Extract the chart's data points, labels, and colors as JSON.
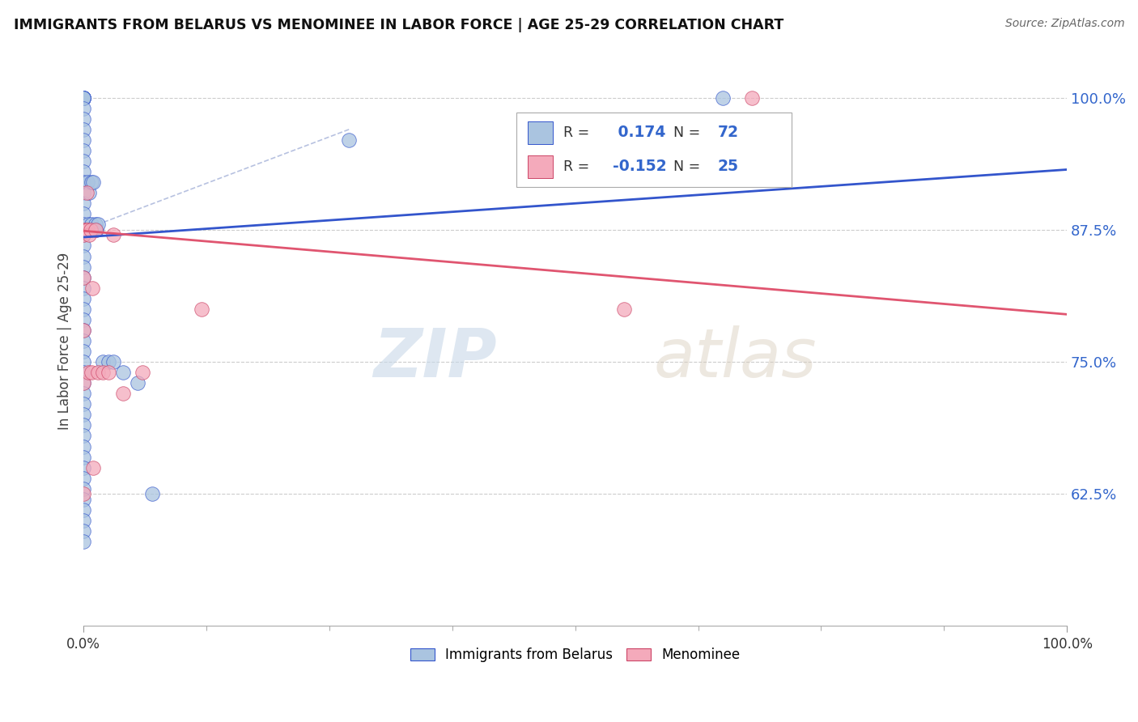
{
  "title": "IMMIGRANTS FROM BELARUS VS MENOMINEE IN LABOR FORCE | AGE 25-29 CORRELATION CHART",
  "source": "Source: ZipAtlas.com",
  "ylabel": "In Labor Force | Age 25-29",
  "xlim": [
    0.0,
    1.0
  ],
  "ylim": [
    0.5,
    1.04
  ],
  "yticks": [
    0.625,
    0.75,
    0.875,
    1.0
  ],
  "ytick_labels": [
    "62.5%",
    "75.0%",
    "87.5%",
    "100.0%"
  ],
  "xtick_labels": [
    "0.0%",
    "100.0%"
  ],
  "xticks": [
    0.0,
    1.0
  ],
  "r_blue": 0.174,
  "n_blue": 72,
  "r_pink": -0.152,
  "n_pink": 25,
  "blue_color": "#aac4e0",
  "pink_color": "#f4aabb",
  "trend_blue_color": "#3355cc",
  "trend_pink_color": "#e05570",
  "blue_scatter_x": [
    0.0,
    0.0,
    0.0,
    0.0,
    0.0,
    0.0,
    0.0,
    0.0,
    0.0,
    0.0,
    0.0,
    0.0,
    0.0,
    0.0,
    0.0,
    0.0,
    0.0,
    0.0,
    0.0,
    0.0,
    0.0,
    0.0,
    0.0,
    0.0,
    0.0,
    0.0,
    0.0,
    0.0,
    0.0,
    0.0,
    0.0,
    0.0,
    0.0,
    0.0,
    0.0,
    0.0,
    0.0,
    0.0,
    0.0,
    0.0,
    0.0,
    0.0,
    0.0,
    0.0,
    0.0,
    0.0,
    0.0,
    0.0,
    0.0,
    0.0,
    0.0,
    0.0,
    0.004,
    0.005,
    0.005,
    0.006,
    0.007,
    0.008,
    0.008,
    0.009,
    0.01,
    0.012,
    0.013,
    0.015,
    0.02,
    0.025,
    0.03,
    0.04,
    0.055,
    0.07,
    0.27,
    0.65
  ],
  "blue_scatter_y": [
    1.0,
    1.0,
    1.0,
    1.0,
    1.0,
    1.0,
    1.0,
    1.0,
    1.0,
    0.99,
    0.98,
    0.97,
    0.96,
    0.95,
    0.94,
    0.93,
    0.92,
    0.91,
    0.9,
    0.89,
    0.88,
    0.875,
    0.87,
    0.86,
    0.85,
    0.84,
    0.83,
    0.82,
    0.81,
    0.8,
    0.79,
    0.78,
    0.77,
    0.76,
    0.75,
    0.74,
    0.73,
    0.72,
    0.71,
    0.7,
    0.69,
    0.68,
    0.67,
    0.66,
    0.65,
    0.64,
    0.63,
    0.62,
    0.61,
    0.6,
    0.59,
    0.58,
    0.92,
    0.875,
    0.88,
    0.91,
    0.875,
    0.92,
    0.88,
    0.875,
    0.92,
    0.88,
    0.875,
    0.88,
    0.75,
    0.75,
    0.75,
    0.74,
    0.73,
    0.625,
    0.96,
    1.0
  ],
  "pink_scatter_x": [
    0.0,
    0.0,
    0.0,
    0.0,
    0.0,
    0.0,
    0.002,
    0.003,
    0.004,
    0.005,
    0.006,
    0.007,
    0.008,
    0.009,
    0.01,
    0.012,
    0.015,
    0.02,
    0.025,
    0.03,
    0.04,
    0.06,
    0.12,
    0.55,
    0.68
  ],
  "pink_scatter_y": [
    0.875,
    0.87,
    0.83,
    0.78,
    0.73,
    0.625,
    0.875,
    0.91,
    0.875,
    0.74,
    0.87,
    0.875,
    0.74,
    0.82,
    0.65,
    0.875,
    0.74,
    0.74,
    0.74,
    0.87,
    0.72,
    0.74,
    0.8,
    0.8,
    1.0
  ],
  "blue_trend_x0": 0.0,
  "blue_trend_x1": 1.0,
  "blue_trend_y0": 0.868,
  "blue_trend_y1": 0.932,
  "pink_trend_x0": 0.0,
  "pink_trend_x1": 1.0,
  "pink_trend_y0": 0.874,
  "pink_trend_y1": 0.795
}
